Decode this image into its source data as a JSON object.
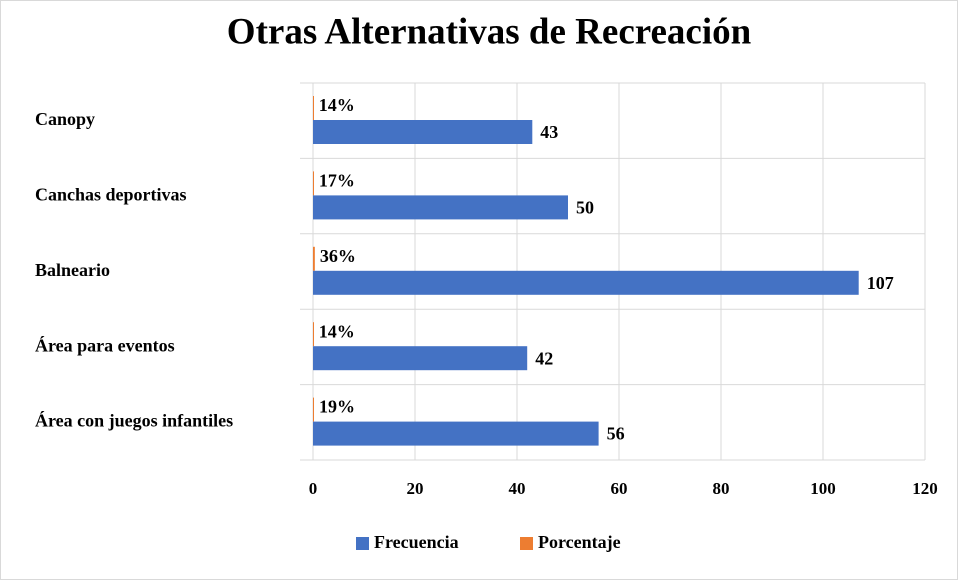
{
  "chart_data": {
    "type": "bar",
    "orientation": "horizontal",
    "title": "Otras Alternativas de Recreación",
    "categories": [
      "Canopy",
      "Canchas deportivas",
      "Balneario",
      "Área para eventos",
      "Área con juegos infantiles"
    ],
    "series": [
      {
        "name": "Frecuencia",
        "color": "#4472c4",
        "values": [
          43,
          50,
          107,
          42,
          56
        ]
      },
      {
        "name": "Porcentaje",
        "color": "#ed7d31",
        "values": [
          0.14,
          0.17,
          0.36,
          0.14,
          0.19
        ],
        "value_labels": [
          "14%",
          "17%",
          "36%",
          "14%",
          "19%"
        ]
      }
    ],
    "xlim": [
      0,
      120
    ],
    "xticks": [
      0,
      20,
      40,
      60,
      80,
      100,
      120
    ],
    "grid": true,
    "legend": "bottom"
  }
}
